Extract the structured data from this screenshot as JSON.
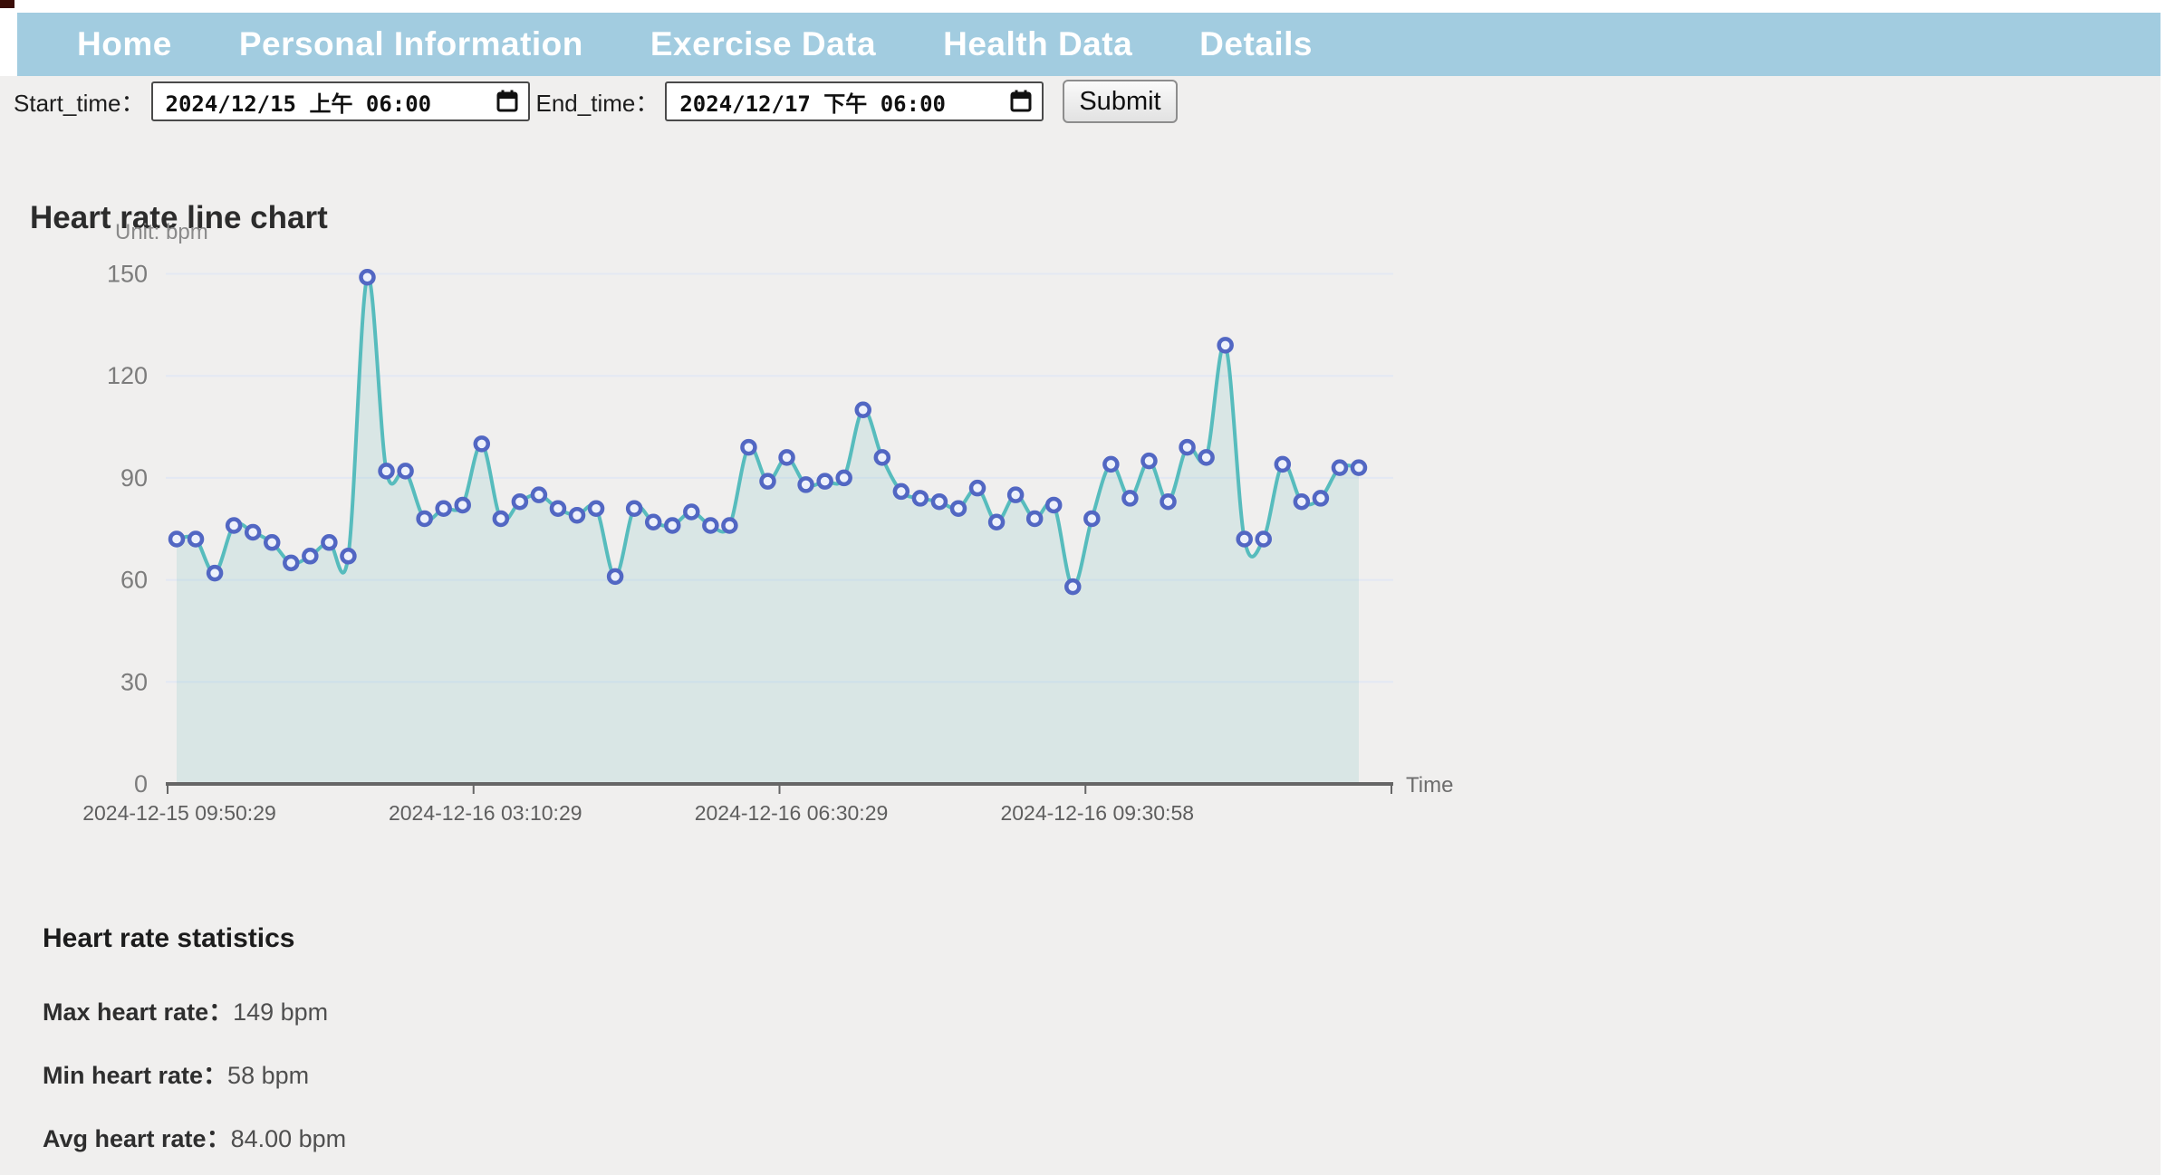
{
  "nav": {
    "items": [
      {
        "id": "home",
        "label": "Home"
      },
      {
        "id": "personal-information",
        "label": "Personal Information"
      },
      {
        "id": "exercise-data",
        "label": "Exercise Data"
      },
      {
        "id": "health-data",
        "label": "Health Data"
      },
      {
        "id": "details",
        "label": "Details"
      }
    ],
    "background_color": "#a2cce0",
    "text_color": "#ffffff"
  },
  "toolbar": {
    "start_label": "Start_time：",
    "start_value": "2024/12/15 上午 06:00",
    "end_label": "End_time：",
    "end_value": "2024/12/17 下午 06:00",
    "submit_label": "Submit",
    "calendar_icon": "calendar-icon"
  },
  "chart": {
    "title": "Heart rate line chart"
  },
  "chart_data": {
    "type": "line",
    "title": "Heart rate line chart",
    "unit_label": "Unit: bpm",
    "xlabel": "Time",
    "ylabel": "Unit: bpm",
    "ylim": [
      0,
      150
    ],
    "yticks": [
      0,
      30,
      60,
      90,
      120,
      150
    ],
    "grid": true,
    "legend_position": "none",
    "x_tick_labels": [
      "2024-12-15 09:50:29",
      "2024-12-16 03:10:29",
      "2024-12-16 06:30:29",
      "2024-12-16 09:30:58"
    ],
    "series": [
      {
        "name": "Heart rate",
        "values": [
          72,
          72,
          62,
          76,
          74,
          71,
          65,
          67,
          71,
          67,
          149,
          92,
          92,
          78,
          81,
          82,
          100,
          78,
          83,
          85,
          81,
          79,
          81,
          61,
          81,
          77,
          76,
          80,
          76,
          76,
          99,
          89,
          96,
          88,
          89,
          90,
          110,
          96,
          86,
          84,
          83,
          81,
          87,
          77,
          85,
          78,
          82,
          58,
          78,
          94,
          84,
          95,
          83,
          99,
          96,
          129,
          72,
          72,
          94,
          83,
          84,
          93,
          93
        ]
      }
    ],
    "line_color": "#57bcbd",
    "marker_color": "#5267c3",
    "marker_fill": "#edf1fb",
    "area_color": "rgba(126,193,193,0.20)",
    "gridline_color": "#e3e8f3",
    "axis_color": "#666666"
  },
  "stats": {
    "heading": "Heart rate statistics",
    "rows": [
      {
        "label": "Max heart rate：",
        "value": "149 bpm"
      },
      {
        "label": "Min heart rate：",
        "value": "58 bpm"
      },
      {
        "label": "Avg heart rate：",
        "value": "84.00 bpm"
      }
    ]
  }
}
